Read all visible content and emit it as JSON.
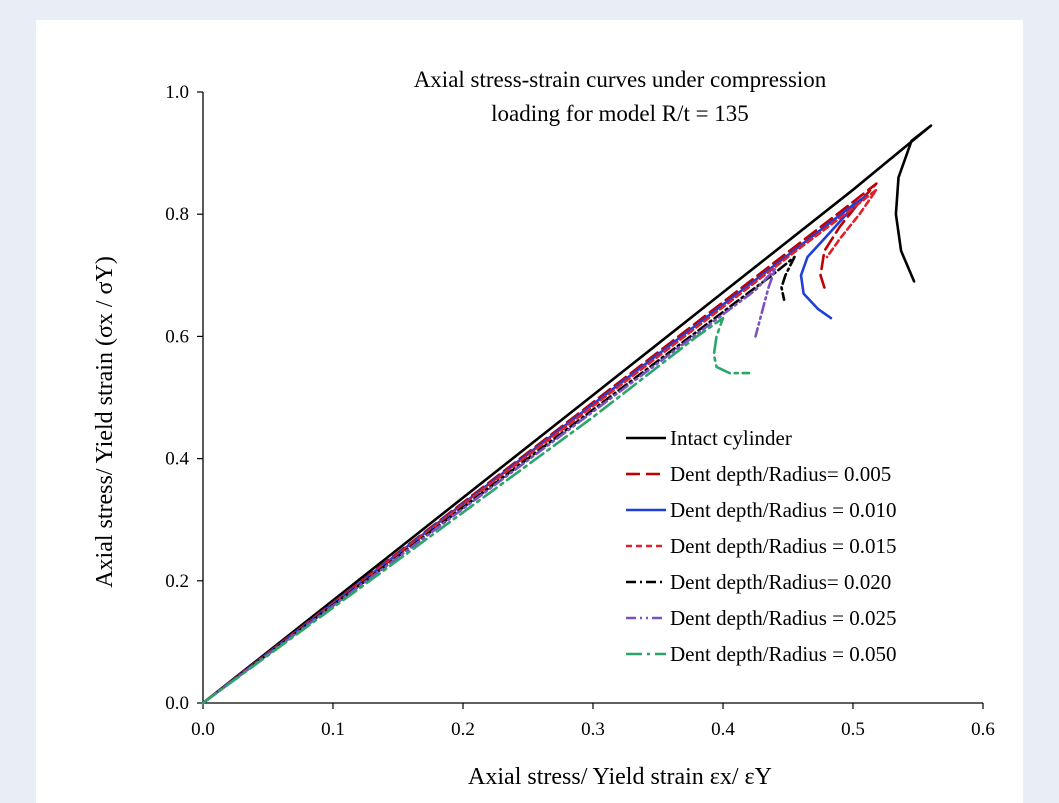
{
  "chart_data": {
    "type": "line",
    "title": "Axial stress-strain curves under compression",
    "subtitle": "loading for model R/t = 135",
    "xlabel": "Axial stress/ Yield strain εx/ εY",
    "ylabel": "Axial stress/ Yield strain (σx / σY)",
    "xlim": [
      0,
      0.6
    ],
    "ylim": [
      0,
      1.0
    ],
    "xticks": [
      "0.0",
      "0.1",
      "0.2",
      "0.3",
      "0.4",
      "0.5",
      "0.6"
    ],
    "yticks": [
      "0.0",
      "0.2",
      "0.4",
      "0.6",
      "0.8",
      "1.0"
    ],
    "grid": false,
    "legend_position": "bottom-right",
    "series": [
      {
        "name": "Intact cylinder",
        "color": "#000000",
        "dash": "solid",
        "x": [
          0,
          0.1,
          0.2,
          0.3,
          0.4,
          0.5,
          0.56,
          0.545,
          0.535,
          0.533,
          0.537,
          0.547
        ],
        "y": [
          0,
          0.168,
          0.336,
          0.504,
          0.672,
          0.84,
          0.945,
          0.92,
          0.86,
          0.8,
          0.74,
          0.69
        ]
      },
      {
        "name": "Dent depth/Radius= 0.005",
        "color": "#c00000",
        "dash": "longdash",
        "x": [
          0,
          0.1,
          0.2,
          0.3,
          0.4,
          0.45,
          0.5,
          0.518,
          0.505,
          0.49,
          0.478,
          0.475,
          0.478
        ],
        "y": [
          0,
          0.164,
          0.328,
          0.492,
          0.656,
          0.738,
          0.82,
          0.85,
          0.82,
          0.78,
          0.74,
          0.7,
          0.68
        ]
      },
      {
        "name": "Dent depth/Radius = 0.010",
        "color": "#1f3fd8",
        "dash": "solid",
        "x": [
          0,
          0.1,
          0.2,
          0.3,
          0.4,
          0.45,
          0.5,
          0.51,
          0.495,
          0.478,
          0.465,
          0.46,
          0.462,
          0.473,
          0.483
        ],
        "y": [
          0,
          0.163,
          0.326,
          0.489,
          0.652,
          0.733,
          0.815,
          0.83,
          0.8,
          0.76,
          0.73,
          0.7,
          0.67,
          0.645,
          0.63
        ]
      },
      {
        "name": "Dent depth/Radius = 0.015",
        "color": "#e0202a",
        "dash": "shortdash",
        "x": [
          0,
          0.1,
          0.2,
          0.3,
          0.4,
          0.45,
          0.5,
          0.518,
          0.505,
          0.49,
          0.48
        ],
        "y": [
          0,
          0.162,
          0.324,
          0.486,
          0.648,
          0.73,
          0.81,
          0.84,
          0.8,
          0.76,
          0.73
        ]
      },
      {
        "name": "Dent depth/Radius= 0.020",
        "color": "#000000",
        "dash": "dashdot",
        "x": [
          0,
          0.1,
          0.2,
          0.3,
          0.4,
          0.44,
          0.455,
          0.448,
          0.445,
          0.447
        ],
        "y": [
          0,
          0.16,
          0.32,
          0.48,
          0.64,
          0.704,
          0.73,
          0.7,
          0.68,
          0.66
        ]
      },
      {
        "name": "Dent depth/Radius = 0.025",
        "color": "#7a52c4",
        "dash": "dashdotdot",
        "x": [
          0,
          0.1,
          0.2,
          0.3,
          0.4,
          0.425,
          0.44,
          0.435,
          0.43,
          0.425
        ],
        "y": [
          0,
          0.159,
          0.318,
          0.477,
          0.636,
          0.676,
          0.71,
          0.68,
          0.64,
          0.6
        ]
      },
      {
        "name": "Dent depth/Radius = 0.050",
        "color": "#2aa66a",
        "dash": "longdashdot",
        "x": [
          0,
          0.1,
          0.2,
          0.3,
          0.38,
          0.4,
          0.395,
          0.393,
          0.395,
          0.405,
          0.42
        ],
        "y": [
          0,
          0.156,
          0.312,
          0.468,
          0.6,
          0.63,
          0.6,
          0.57,
          0.55,
          0.54,
          0.54
        ]
      }
    ]
  }
}
